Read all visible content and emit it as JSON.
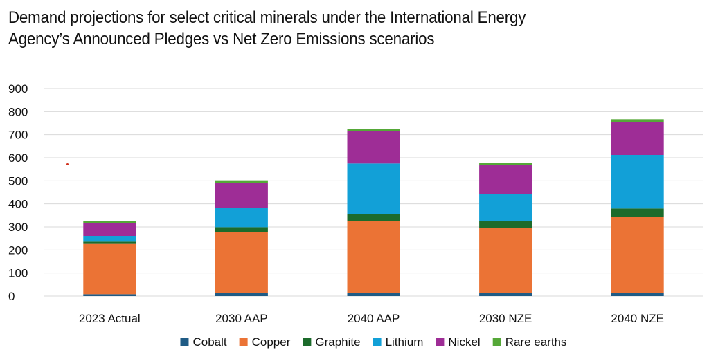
{
  "chart_data": {
    "type": "bar",
    "stacked": true,
    "title_lines": [
      "Demand projections for select critical minerals under the International Energy",
      "Agency’s Announced Pledges vs Net Zero Emissions scenarios"
    ],
    "categories": [
      "2023 Actual",
      "2030 AAP",
      "2040 AAP",
      "2030 NZE",
      "2040 NZE"
    ],
    "ylim": [
      0,
      900
    ],
    "yticks": [
      0,
      100,
      200,
      300,
      400,
      500,
      600,
      700,
      800,
      900
    ],
    "grid": true,
    "legend_position": "bottom",
    "series": [
      {
        "name": "Cobalt",
        "color": "#1f5b85",
        "values": [
          8,
          12,
          15,
          15,
          15
        ]
      },
      {
        "name": "Copper",
        "color": "#eb7335",
        "values": [
          218,
          265,
          310,
          282,
          330
        ]
      },
      {
        "name": "Graphite",
        "color": "#1c6b2b",
        "values": [
          10,
          22,
          30,
          27,
          35
        ]
      },
      {
        "name": "Lithium",
        "color": "#12a0d7",
        "values": [
          25,
          85,
          220,
          118,
          232
        ]
      },
      {
        "name": "Nickel",
        "color": "#9e2d96",
        "values": [
          57,
          108,
          140,
          127,
          143
        ]
      },
      {
        "name": "Rare earths",
        "color": "#55a838",
        "values": [
          8,
          10,
          10,
          10,
          12
        ]
      }
    ]
  }
}
